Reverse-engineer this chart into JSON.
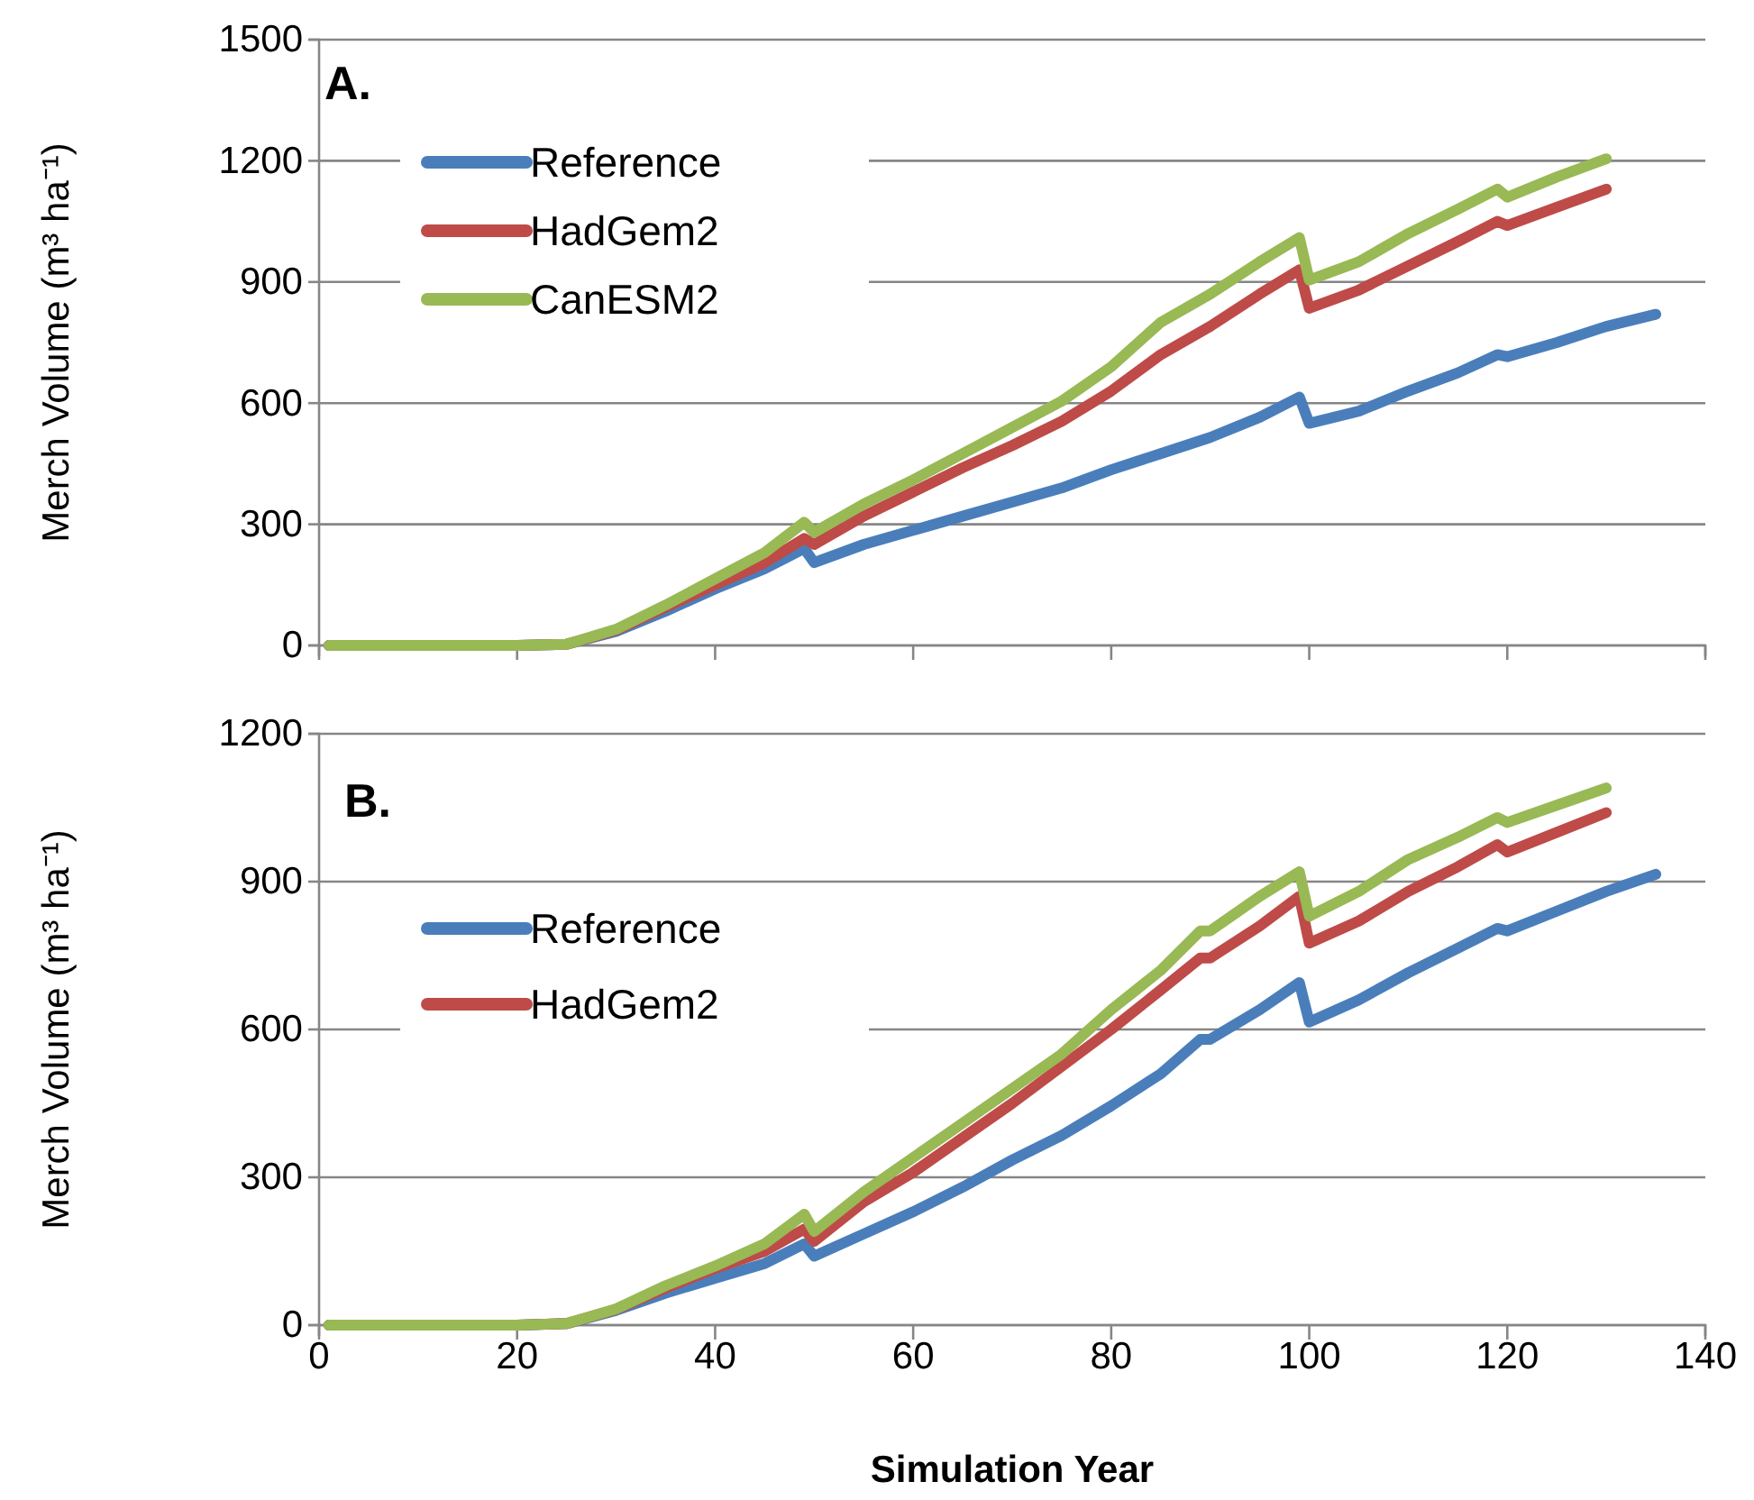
{
  "chart_data": [
    {
      "type": "line",
      "ylabel": "Merch Volume (m³ ha⁻¹)",
      "annotations": [
        "A."
      ],
      "xlim": [
        0,
        140
      ],
      "xticks": [
        0,
        20,
        40,
        60,
        80,
        100,
        120,
        140
      ],
      "ylim": [
        0,
        1500
      ],
      "yticks": [
        0,
        300,
        600,
        900,
        1200,
        1500
      ],
      "grid": "y",
      "legend": "top left",
      "tick_labels": "y",
      "marker": "none",
      "line_style": "solid",
      "series": [
        {
          "name": "Reference",
          "color": "#4a7ebb",
          "x": [
            1,
            20,
            25,
            30,
            35,
            40,
            45,
            49,
            50,
            55,
            60,
            65,
            70,
            75,
            80,
            85,
            90,
            95,
            99,
            100,
            105,
            110,
            115,
            119,
            120,
            125,
            130,
            135
          ],
          "values": [
            0,
            0,
            3,
            35,
            85,
            140,
            190,
            240,
            205,
            250,
            285,
            320,
            355,
            390,
            435,
            475,
            515,
            565,
            615,
            550,
            580,
            630,
            675,
            720,
            715,
            750,
            790,
            820
          ]
        },
        {
          "name": "HadGem2",
          "color": "#be4b48",
          "x": [
            1,
            20,
            25,
            30,
            35,
            40,
            45,
            49,
            50,
            55,
            60,
            65,
            70,
            75,
            80,
            85,
            90,
            95,
            99,
            100,
            105,
            110,
            115,
            119,
            120,
            125,
            130
          ],
          "values": [
            0,
            0,
            3,
            38,
            95,
            150,
            205,
            265,
            250,
            320,
            380,
            440,
            495,
            555,
            630,
            720,
            790,
            870,
            930,
            835,
            880,
            940,
            1000,
            1050,
            1040,
            1085,
            1130
          ]
        },
        {
          "name": "CanESM2",
          "color": "#98b954",
          "x": [
            1,
            20,
            25,
            30,
            35,
            40,
            45,
            49,
            50,
            55,
            60,
            65,
            70,
            75,
            80,
            85,
            90,
            95,
            99,
            100,
            105,
            110,
            115,
            119,
            120,
            125,
            130
          ],
          "values": [
            0,
            0,
            3,
            40,
            100,
            165,
            230,
            305,
            280,
            350,
            410,
            475,
            540,
            605,
            690,
            800,
            870,
            950,
            1010,
            905,
            950,
            1020,
            1080,
            1130,
            1110,
            1160,
            1205
          ]
        }
      ]
    },
    {
      "type": "line",
      "ylabel": "Merch Volume (m³ ha⁻¹)",
      "xlabel": "Simulation Year",
      "annotations": [
        "B."
      ],
      "xlim": [
        0,
        140
      ],
      "xticks": [
        0,
        20,
        40,
        60,
        80,
        100,
        120,
        140
      ],
      "ylim": [
        0,
        1200
      ],
      "yticks": [
        0,
        300,
        600,
        900,
        1200
      ],
      "grid": "y",
      "legend": "top left",
      "marker": "none",
      "line_style": "solid",
      "series": [
        {
          "name": "Reference",
          "color": "#4a7ebb",
          "x": [
            1,
            20,
            25,
            30,
            35,
            40,
            45,
            49,
            50,
            55,
            60,
            65,
            70,
            75,
            80,
            85,
            89,
            90,
            95,
            99,
            100,
            105,
            110,
            115,
            119,
            120,
            125,
            130,
            135
          ],
          "values": [
            0,
            0,
            3,
            30,
            65,
            95,
            125,
            165,
            140,
            185,
            230,
            280,
            335,
            385,
            445,
            510,
            580,
            580,
            640,
            695,
            615,
            660,
            715,
            765,
            805,
            800,
            840,
            880,
            915
          ]
        },
        {
          "name": "HadGem2",
          "color": "#be4b48",
          "x": [
            1,
            20,
            25,
            30,
            35,
            40,
            45,
            49,
            50,
            55,
            60,
            65,
            70,
            75,
            80,
            85,
            89,
            90,
            95,
            99,
            100,
            105,
            110,
            115,
            119,
            120,
            125,
            130
          ],
          "values": [
            0,
            0,
            3,
            32,
            75,
            115,
            150,
            195,
            170,
            250,
            310,
            380,
            450,
            525,
            600,
            680,
            745,
            745,
            810,
            870,
            775,
            820,
            880,
            930,
            975,
            960,
            1000,
            1040
          ]
        },
        {
          "color": "#98b954",
          "x": [
            1,
            20,
            25,
            30,
            35,
            40,
            45,
            49,
            50,
            55,
            60,
            65,
            70,
            75,
            80,
            85,
            89,
            90,
            95,
            99,
            100,
            105,
            110,
            115,
            119,
            120,
            125,
            130
          ],
          "values": [
            0,
            0,
            3,
            33,
            80,
            120,
            165,
            225,
            190,
            270,
            340,
            410,
            480,
            550,
            640,
            720,
            800,
            800,
            870,
            920,
            830,
            880,
            945,
            990,
            1030,
            1020,
            1055,
            1090
          ]
        }
      ]
    }
  ]
}
